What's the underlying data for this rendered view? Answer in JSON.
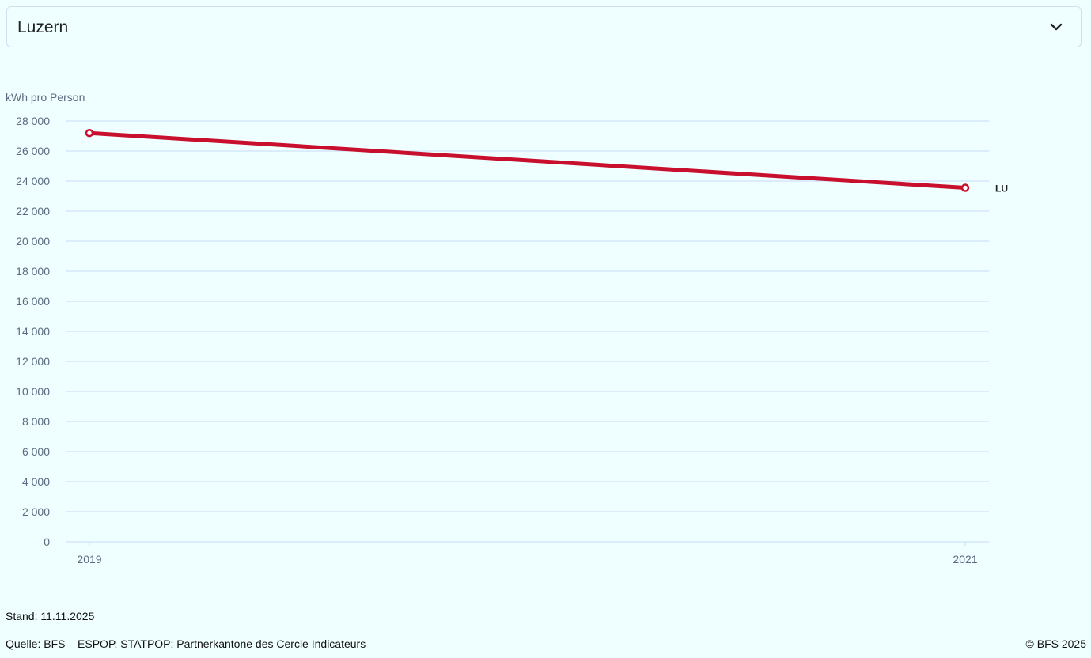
{
  "select": {
    "value": "Luzern"
  },
  "icons": {
    "select_chevron": "chevron-down-icon"
  },
  "colors": {
    "series": "#c8102e",
    "grid": "#c7dcf5",
    "axis_text": "#5b6b82",
    "background": "#effefe"
  },
  "chart_data": {
    "type": "line",
    "ylabel": "kWh pro Person",
    "ylim": [
      0,
      28000
    ],
    "y_ticks": [
      {
        "value": 0,
        "label": "0"
      },
      {
        "value": 2000,
        "label": "2 000"
      },
      {
        "value": 4000,
        "label": "4 000"
      },
      {
        "value": 6000,
        "label": "6 000"
      },
      {
        "value": 8000,
        "label": "8 000"
      },
      {
        "value": 10000,
        "label": "10 000"
      },
      {
        "value": 12000,
        "label": "12 000"
      },
      {
        "value": 14000,
        "label": "14 000"
      },
      {
        "value": 16000,
        "label": "16 000"
      },
      {
        "value": 18000,
        "label": "18 000"
      },
      {
        "value": 20000,
        "label": "20 000"
      },
      {
        "value": 22000,
        "label": "22 000"
      },
      {
        "value": 24000,
        "label": "24 000"
      },
      {
        "value": 26000,
        "label": "26 000"
      },
      {
        "value": 28000,
        "label": "28 000"
      }
    ],
    "x": [
      "2019",
      "2021"
    ],
    "grid": true,
    "series": [
      {
        "name": "LU",
        "values": [
          27200,
          23550
        ]
      }
    ]
  },
  "footer": {
    "stand": "Stand: 11.11.2025",
    "quelle": "Quelle: BFS – ESPOP, STATPOP; Partnerkantone des Cercle Indicateurs",
    "copyright": "© BFS 2025"
  }
}
